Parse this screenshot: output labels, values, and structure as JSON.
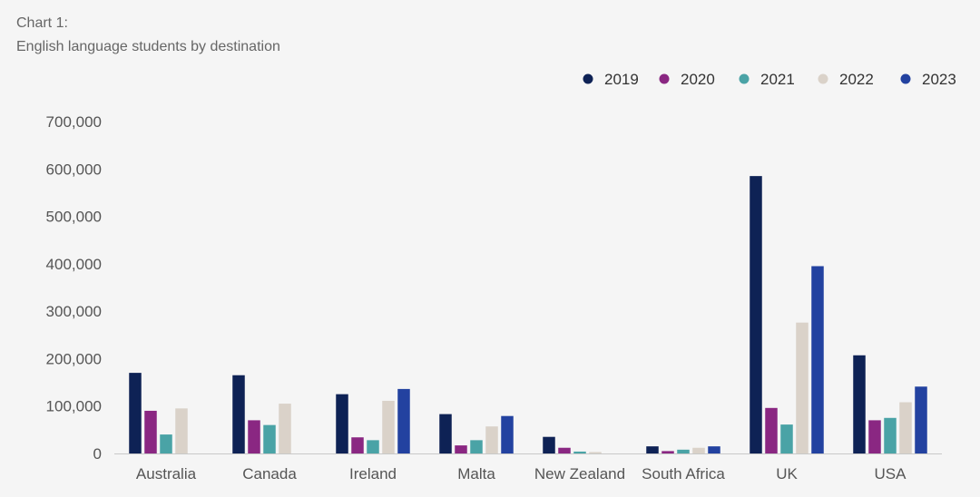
{
  "title": "Chart 1:",
  "subtitle": "English language students by destination",
  "chart_data": {
    "type": "bar",
    "categories": [
      "Australia",
      "Canada",
      "Ireland",
      "Malta",
      "New Zealand",
      "South Africa",
      "UK",
      "USA"
    ],
    "series": [
      {
        "name": "2019",
        "color": "#0e2255",
        "values": [
          170000,
          165000,
          125000,
          83000,
          35000,
          15000,
          585000,
          207000
        ]
      },
      {
        "name": "2020",
        "color": "#8a2782",
        "values": [
          90000,
          70000,
          34000,
          17000,
          12000,
          5000,
          96000,
          70000
        ]
      },
      {
        "name": "2021",
        "color": "#4aa3a6",
        "values": [
          40000,
          60000,
          28000,
          28000,
          4000,
          8000,
          61000,
          75000
        ]
      },
      {
        "name": "2022",
        "color": "#dad2c9",
        "values": [
          95000,
          105000,
          111000,
          57000,
          3000,
          12000,
          276000,
          108000
        ]
      },
      {
        "name": "2023",
        "color": "#2342a0",
        "values": [
          null,
          null,
          136000,
          79000,
          null,
          15000,
          395000,
          141000
        ]
      }
    ],
    "ylim": [
      0,
      700000
    ],
    "yticks": [
      0,
      100000,
      200000,
      300000,
      400000,
      500000,
      600000,
      700000
    ],
    "ytick_labels": [
      "0",
      "100,000",
      "200,000",
      "300,000",
      "400,000",
      "500,000",
      "600,000",
      "700,000"
    ],
    "legend_position": "top-right",
    "grid": false
  }
}
